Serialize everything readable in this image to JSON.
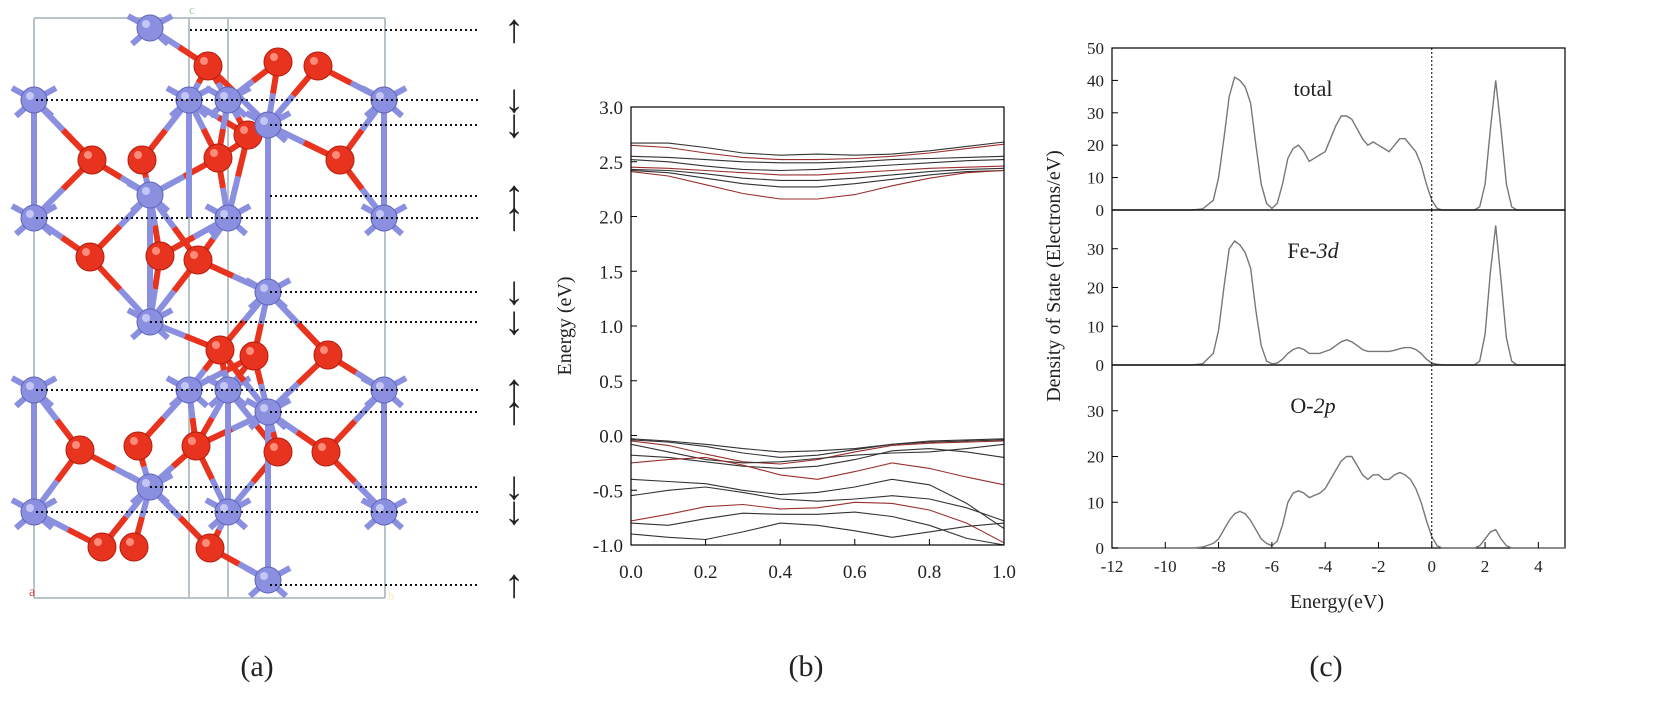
{
  "colors": {
    "fe_atom": "#8a8fe0",
    "o_atom": "#e8341f",
    "cell_line": "#b7c2c9",
    "band": "#333333",
    "band_alt": "#9b2f2f",
    "dos": "#777777",
    "axis": "#000000"
  },
  "structure": {
    "panel_label": "(a)",
    "corner_labels": {
      "top": "c",
      "bottom_left": "a",
      "bottom_right": "b"
    },
    "spins": [
      "↑",
      "↓",
      "↓",
      "↑",
      "↑",
      "↓",
      "↓",
      "↑",
      "↑",
      "↓",
      "↓",
      "↑"
    ]
  },
  "chart_data": [
    {
      "id": "band",
      "type": "line",
      "panel_label": "(b)",
      "ylabel": "Energy (eV)",
      "xlabel": "",
      "xlim": [
        0.0,
        1.0
      ],
      "ylim": [
        -1.0,
        3.0
      ],
      "xticks": [
        "0.0",
        "0.2",
        "0.4",
        "0.6",
        "0.8",
        "1.0"
      ],
      "yticks": [
        "-1.0",
        "-0.5",
        "0.0",
        "0.5",
        "1.0",
        "1.5",
        "2.0",
        "2.5",
        "3.0"
      ],
      "x": [
        0.0,
        0.1,
        0.2,
        0.3,
        0.4,
        0.5,
        0.6,
        0.7,
        0.8,
        0.9,
        1.0
      ],
      "series": [
        {
          "values": [
            2.67,
            2.67,
            2.63,
            2.58,
            2.56,
            2.57,
            2.56,
            2.57,
            2.6,
            2.64,
            2.68
          ]
        },
        {
          "values": [
            2.65,
            2.63,
            2.58,
            2.54,
            2.52,
            2.52,
            2.53,
            2.55,
            2.58,
            2.62,
            2.66
          ]
        },
        {
          "values": [
            2.55,
            2.54,
            2.52,
            2.5,
            2.49,
            2.49,
            2.5,
            2.52,
            2.53,
            2.54,
            2.55
          ]
        },
        {
          "values": [
            2.52,
            2.5,
            2.46,
            2.43,
            2.42,
            2.43,
            2.45,
            2.47,
            2.49,
            2.51,
            2.52
          ]
        },
        {
          "values": [
            2.45,
            2.44,
            2.42,
            2.4,
            2.38,
            2.38,
            2.4,
            2.42,
            2.44,
            2.45,
            2.46
          ]
        },
        {
          "values": [
            2.43,
            2.42,
            2.39,
            2.35,
            2.33,
            2.33,
            2.35,
            2.38,
            2.41,
            2.43,
            2.44
          ]
        },
        {
          "values": [
            2.42,
            2.4,
            2.35,
            2.3,
            2.27,
            2.27,
            2.3,
            2.34,
            2.38,
            2.41,
            2.42
          ]
        },
        {
          "values": [
            2.41,
            2.37,
            2.29,
            2.21,
            2.16,
            2.16,
            2.2,
            2.28,
            2.35,
            2.4,
            2.42
          ]
        },
        {
          "values": [
            -0.03,
            -0.05,
            -0.08,
            -0.12,
            -0.15,
            -0.14,
            -0.12,
            -0.08,
            -0.05,
            -0.04,
            -0.03
          ]
        },
        {
          "values": [
            -0.04,
            -0.06,
            -0.1,
            -0.16,
            -0.2,
            -0.18,
            -0.13,
            -0.08,
            -0.06,
            -0.05,
            -0.04
          ]
        },
        {
          "values": [
            -0.05,
            -0.09,
            -0.17,
            -0.24,
            -0.26,
            -0.22,
            -0.15,
            -0.09,
            -0.07,
            -0.06,
            -0.05
          ]
        },
        {
          "values": [
            -0.08,
            -0.15,
            -0.22,
            -0.25,
            -0.24,
            -0.21,
            -0.18,
            -0.16,
            -0.15,
            -0.12,
            -0.08
          ]
        },
        {
          "values": [
            -0.18,
            -0.2,
            -0.24,
            -0.28,
            -0.3,
            -0.28,
            -0.22,
            -0.14,
            -0.12,
            -0.15,
            -0.2
          ]
        },
        {
          "values": [
            -0.25,
            -0.22,
            -0.2,
            -0.27,
            -0.36,
            -0.4,
            -0.33,
            -0.25,
            -0.3,
            -0.38,
            -0.45
          ]
        },
        {
          "values": [
            -0.4,
            -0.42,
            -0.44,
            -0.5,
            -0.54,
            -0.52,
            -0.47,
            -0.4,
            -0.45,
            -0.62,
            -0.85
          ]
        },
        {
          "values": [
            -0.55,
            -0.5,
            -0.47,
            -0.52,
            -0.58,
            -0.6,
            -0.58,
            -0.55,
            -0.58,
            -0.66,
            -0.78
          ]
        },
        {
          "values": [
            -0.78,
            -0.72,
            -0.65,
            -0.63,
            -0.67,
            -0.66,
            -0.61,
            -0.62,
            -0.68,
            -0.8,
            -0.98
          ]
        },
        {
          "values": [
            -0.8,
            -0.82,
            -0.76,
            -0.71,
            -0.72,
            -0.72,
            -0.7,
            -0.74,
            -0.82,
            -0.94,
            -1.0
          ]
        },
        {
          "values": [
            -0.9,
            -0.93,
            -0.95,
            -0.88,
            -0.8,
            -0.82,
            -0.87,
            -0.93,
            -0.88,
            -0.83,
            -0.8
          ]
        }
      ]
    },
    {
      "id": "dos",
      "type": "line",
      "panel_label": "(c)",
      "xlabel": "Energy(eV)",
      "ylabel": "Density of State (Electrons/eV)",
      "xlim": [
        -12,
        5
      ],
      "xticks": [
        "-12",
        "-10",
        "-8",
        "-6",
        "-4",
        "-2",
        "0",
        "2",
        "4"
      ],
      "fermi_level": 0,
      "x": [
        -12,
        -11,
        -10,
        -9,
        -8.6,
        -8.2,
        -8.0,
        -7.8,
        -7.6,
        -7.4,
        -7.2,
        -7.0,
        -6.8,
        -6.6,
        -6.4,
        -6.2,
        -6.0,
        -5.8,
        -5.6,
        -5.4,
        -5.2,
        -5.0,
        -4.8,
        -4.6,
        -4.4,
        -4.2,
        -4.0,
        -3.8,
        -3.6,
        -3.4,
        -3.2,
        -3.0,
        -2.8,
        -2.6,
        -2.4,
        -2.2,
        -2.0,
        -1.8,
        -1.6,
        -1.4,
        -1.2,
        -1.0,
        -0.8,
        -0.6,
        -0.4,
        -0.2,
        0.0,
        0.2,
        0.4,
        0.6,
        0.8,
        1.0,
        1.2,
        1.4,
        1.6,
        1.8,
        2.0,
        2.2,
        2.4,
        2.6,
        2.8,
        3.0,
        3.2,
        3.6,
        4.0,
        4.5,
        5.0
      ],
      "subplots": [
        {
          "label": "total",
          "ylim": [
            0,
            50
          ],
          "yticks": [
            "0",
            "10",
            "20",
            "30",
            "40",
            "50"
          ],
          "values": [
            0,
            0,
            0,
            0,
            0.3,
            3,
            10,
            22,
            35,
            41,
            40,
            38,
            33,
            20,
            8,
            2,
            0.5,
            2,
            8,
            16,
            19,
            20,
            18,
            15,
            16,
            17,
            18,
            22,
            26,
            29,
            29,
            28,
            25,
            22,
            20,
            21,
            20,
            19,
            18,
            20,
            22,
            22,
            20,
            18,
            14,
            8,
            3,
            0.5,
            0,
            0,
            0,
            0,
            0,
            0,
            0,
            1,
            8,
            25,
            40,
            25,
            8,
            1,
            0,
            0,
            0,
            0,
            0
          ]
        },
        {
          "label_main": "Fe-",
          "label_italic": "3d",
          "ylim": [
            0,
            40
          ],
          "yticks": [
            "0",
            "10",
            "20",
            "30"
          ],
          "values": [
            0,
            0,
            0,
            0,
            0.3,
            3,
            9,
            20,
            30,
            32,
            31,
            29,
            25,
            14,
            5,
            1,
            0.3,
            0.5,
            1.5,
            3,
            4,
            4.5,
            4,
            3,
            3,
            3,
            3.5,
            4,
            5,
            6,
            6.5,
            6,
            5,
            4,
            3.5,
            3.5,
            3.5,
            3.5,
            3.5,
            3.8,
            4.2,
            4.5,
            4.5,
            4,
            3,
            1.5,
            0.5,
            0.2,
            0,
            0,
            0,
            0,
            0,
            0,
            0,
            1,
            8,
            24,
            36,
            22,
            7,
            1,
            0,
            0,
            0,
            0,
            0
          ]
        },
        {
          "label_main": "O-",
          "label_italic": "2p",
          "ylim": [
            0,
            40
          ],
          "yticks": [
            "0",
            "10",
            "20",
            "30"
          ],
          "values": [
            0,
            0,
            0,
            0,
            0.2,
            1,
            2,
            4,
            6,
            7.5,
            8,
            7.5,
            6,
            4,
            2,
            1,
            0.5,
            1.5,
            5,
            10,
            12,
            12.5,
            12,
            11,
            11.5,
            12,
            13,
            15,
            17,
            19,
            20,
            20,
            18,
            16,
            15,
            16,
            16,
            15,
            15,
            16,
            16.5,
            16,
            15,
            13,
            10,
            6,
            2.5,
            0.5,
            0,
            0,
            0,
            0,
            0,
            0,
            0,
            0.5,
            2,
            3.5,
            4,
            2,
            0.5,
            0,
            0,
            0,
            0,
            0,
            0
          ]
        }
      ]
    }
  ]
}
